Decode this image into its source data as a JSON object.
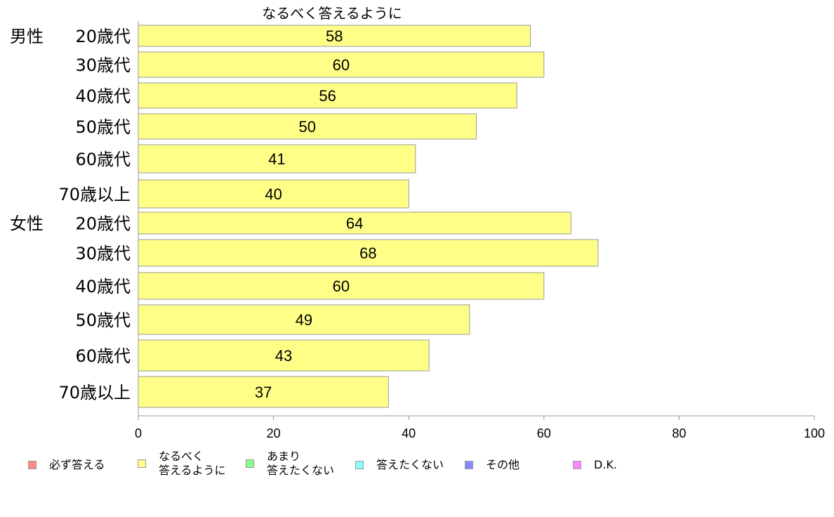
{
  "chart_data": {
    "type": "bar",
    "orientation": "horizontal",
    "title": "なるべく答えるように",
    "categories": [
      {
        "group": "男性",
        "label": "20歳代"
      },
      {
        "group": "",
        "label": "30歳代"
      },
      {
        "group": "",
        "label": "40歳代"
      },
      {
        "group": "",
        "label": "50歳代"
      },
      {
        "group": "",
        "label": "60歳代"
      },
      {
        "group": "",
        "label": "70歳以上"
      },
      {
        "group": "女性",
        "label": "20歳代"
      },
      {
        "group": "",
        "label": "30歳代"
      },
      {
        "group": "",
        "label": "40歳代"
      },
      {
        "group": "",
        "label": "50歳代"
      },
      {
        "group": "",
        "label": "60歳代"
      },
      {
        "group": "",
        "label": "70歳以上"
      }
    ],
    "values": [
      58,
      60,
      56,
      50,
      41,
      40,
      64,
      68,
      60,
      49,
      43,
      37
    ],
    "value_labels": [
      "58",
      "60",
      "56",
      "50",
      "41",
      "40",
      "64",
      "68",
      "60",
      "49",
      "43",
      "37"
    ],
    "xlim": [
      0,
      100
    ],
    "xticks": [
      "0",
      "20",
      "40",
      "60",
      "80",
      "100"
    ],
    "bar_color": "#ffff88",
    "legend": [
      {
        "label": "必ず答える",
        "color": "#ff8888"
      },
      {
        "label": "なるべく\n答えるように",
        "color": "#ffff88"
      },
      {
        "label": "あまり\n答えたくない",
        "color": "#88ff88"
      },
      {
        "label": "答えたくない",
        "color": "#88ffff"
      },
      {
        "label": "その他",
        "color": "#8888ff"
      },
      {
        "label": "D.K.",
        "color": "#ff88ff"
      }
    ]
  }
}
